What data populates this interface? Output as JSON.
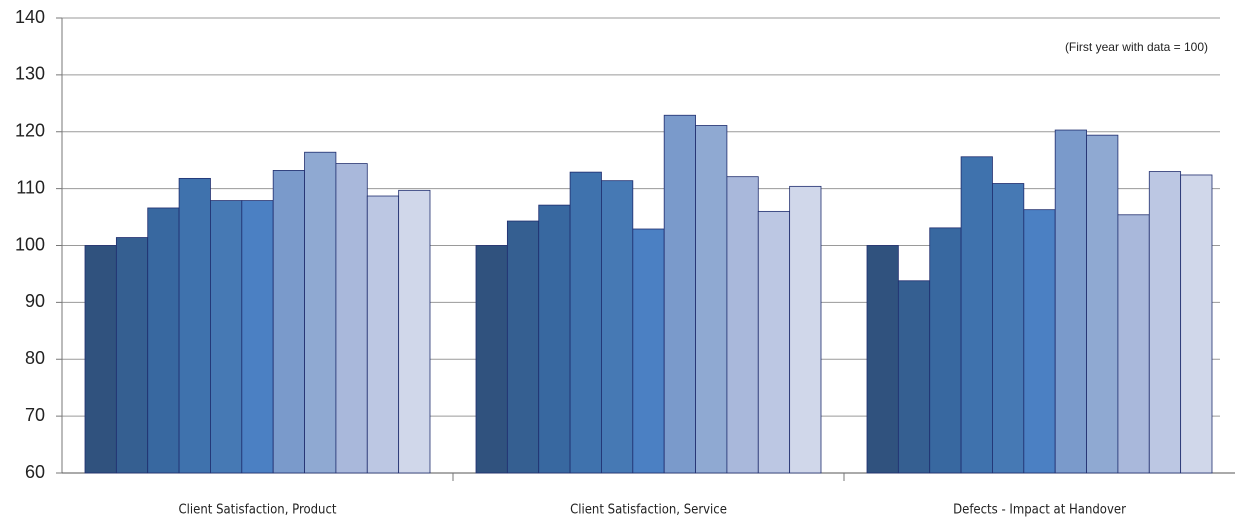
{
  "chart_data": {
    "type": "bar",
    "annotation": "(First year with data = 100)",
    "categories": [
      "Client Satisfaction, Product",
      "Client Satisfaction, Service",
      "Defects - Impact at Handover"
    ],
    "series": [
      {
        "color": "#30527e",
        "values": [
          100,
          100,
          100
        ]
      },
      {
        "color": "#355f91",
        "values": [
          101.4,
          104.3,
          93.8
        ]
      },
      {
        "color": "#3868a0",
        "values": [
          106.6,
          107.1,
          103.1
        ]
      },
      {
        "color": "#3f72ad",
        "values": [
          111.8,
          112.9,
          115.6
        ]
      },
      {
        "color": "#4679b4",
        "values": [
          107.9,
          111.4,
          110.9
        ]
      },
      {
        "color": "#4b80c3",
        "values": [
          107.9,
          102.9,
          106.3
        ]
      },
      {
        "color": "#7a9acb",
        "values": [
          113.2,
          122.9,
          120.3
        ]
      },
      {
        "color": "#8fa9d2",
        "values": [
          116.4,
          121.1,
          119.4
        ]
      },
      {
        "color": "#a9b8db",
        "values": [
          114.4,
          112.1,
          105.4
        ]
      },
      {
        "color": "#bcc7e3",
        "values": [
          108.7,
          106.0,
          113.0
        ]
      },
      {
        "color": "#d0d7ea",
        "values": [
          109.7,
          110.4,
          112.4
        ]
      }
    ],
    "ylim": [
      60,
      140
    ],
    "yticks": [
      60,
      70,
      80,
      90,
      100,
      110,
      120,
      130,
      140
    ],
    "grid": true
  }
}
